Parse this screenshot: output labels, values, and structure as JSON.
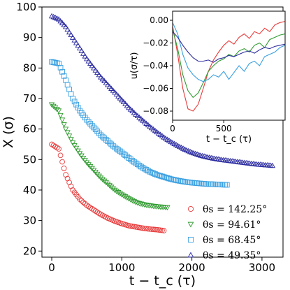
{
  "chart_data": [
    {
      "type": "scatter",
      "title": "",
      "xlabel": "t − t_c (τ)",
      "ylabel": "X (σ)",
      "xlim": [
        -140,
        3300
      ],
      "ylim": [
        18,
        100
      ],
      "xticks": [
        0,
        1000,
        2000,
        3000
      ],
      "yticks": [
        20,
        30,
        40,
        50,
        60,
        70,
        80,
        90,
        100
      ],
      "grid": false,
      "legend_position": "bottom-right",
      "legend": [
        {
          "label": "θs = 142.25°",
          "series": 0
        },
        {
          "label": "θs = 94.61°",
          "series": 1
        },
        {
          "label": "θs = 68.45°",
          "series": 2
        },
        {
          "label": "θs = 49.35°",
          "series": 3
        }
      ],
      "series": [
        {
          "name": "θs = 142.25°",
          "marker": "circle",
          "color": "#e83b3b",
          "x": [
            0,
            100,
            200,
            300,
            400,
            500,
            600,
            700,
            800,
            900,
            1000,
            1100,
            1200,
            1300,
            1400,
            1500,
            1600
          ],
          "y": [
            55.0,
            53.5,
            45.0,
            40.0,
            37.0,
            35.0,
            33.5,
            32.0,
            30.8,
            29.8,
            29.0,
            28.3,
            27.9,
            27.5,
            27.2,
            27.0,
            26.7
          ]
        },
        {
          "name": "θs = 94.61°",
          "marker": "triangle-down",
          "color": "#2f9b2f",
          "x": [
            0,
            100,
            200,
            300,
            400,
            500,
            600,
            700,
            800,
            900,
            1000,
            1100,
            1200,
            1300,
            1400,
            1500,
            1600,
            1650
          ],
          "y": [
            68.0,
            66.0,
            60.0,
            55.5,
            52.0,
            49.0,
            46.5,
            44.0,
            42.0,
            40.0,
            38.5,
            37.2,
            36.0,
            35.3,
            34.9,
            34.6,
            34.4,
            34.3
          ]
        },
        {
          "name": "θs = 68.45°",
          "marker": "square",
          "color": "#3aa0e0",
          "x": [
            0,
            100,
            200,
            300,
            400,
            500,
            600,
            700,
            800,
            900,
            1000,
            1100,
            1200,
            1300,
            1400,
            1500,
            1600,
            1700,
            1800,
            1900,
            2000,
            2100,
            2200,
            2300,
            2400,
            2500
          ],
          "y": [
            82.0,
            81.5,
            76.0,
            70.0,
            66.0,
            63.0,
            60.5,
            58.0,
            56.0,
            54.0,
            52.3,
            50.5,
            48.8,
            47.3,
            46.0,
            45.0,
            44.3,
            43.6,
            43.1,
            42.7,
            42.4,
            42.2,
            42.0,
            41.9,
            41.8,
            41.7
          ]
        },
        {
          "name": "θs = 49.35°",
          "marker": "triangle-up",
          "color": "#2b2ba0",
          "x": [
            0,
            100,
            200,
            300,
            400,
            500,
            600,
            700,
            800,
            900,
            1000,
            1100,
            1200,
            1300,
            1400,
            1500,
            1600,
            1700,
            1800,
            1900,
            2000,
            2100,
            2200,
            2300,
            2400,
            2500,
            2600,
            2700,
            2800,
            2900,
            3000,
            3100,
            3150
          ],
          "y": [
            97.0,
            96.0,
            93.5,
            90.0,
            86.5,
            83.0,
            80.0,
            77.0,
            74.5,
            72.0,
            69.5,
            67.0,
            64.8,
            62.8,
            60.8,
            59.0,
            57.3,
            55.8,
            54.5,
            53.3,
            52.3,
            51.5,
            50.9,
            50.4,
            50.0,
            49.7,
            49.4,
            49.1,
            48.8,
            48.5,
            48.3,
            48.1,
            48.0
          ]
        }
      ]
    },
    {
      "type": "line",
      "title": "",
      "xlabel": "t − t_c (τ)",
      "ylabel": "u(σ/τ)",
      "xlim": [
        0,
        1100
      ],
      "ylim": [
        -0.088,
        0.008
      ],
      "xticks": [
        0,
        500
      ],
      "yticks": [
        0.0,
        -0.02,
        -0.04,
        -0.06,
        -0.08
      ],
      "ytick_labels": [
        "0.00",
        "−0.02",
        "−0.04",
        "−0.06",
        "−0.08"
      ],
      "grid": false,
      "series": [
        {
          "color": "#e83b3b",
          "x": [
            0,
            50,
            100,
            150,
            200,
            250,
            300,
            350,
            400,
            450,
            500,
            550,
            600,
            650,
            700,
            750,
            800,
            850,
            900,
            950,
            1000,
            1050,
            1100
          ],
          "y": [
            -0.005,
            -0.03,
            -0.06,
            -0.078,
            -0.08,
            -0.074,
            -0.06,
            -0.045,
            -0.035,
            -0.028,
            -0.022,
            -0.018,
            -0.021,
            -0.015,
            -0.012,
            -0.016,
            -0.01,
            -0.012,
            -0.007,
            -0.01,
            -0.004,
            -0.002,
            -0.001
          ]
        },
        {
          "color": "#2f9b2f",
          "x": [
            0,
            50,
            100,
            150,
            200,
            250,
            300,
            350,
            400,
            450,
            500,
            550,
            600,
            650,
            700,
            750,
            800,
            850,
            900,
            950,
            1000,
            1050,
            1100
          ],
          "y": [
            -0.008,
            -0.025,
            -0.048,
            -0.062,
            -0.068,
            -0.064,
            -0.055,
            -0.045,
            -0.04,
            -0.036,
            -0.034,
            -0.03,
            -0.032,
            -0.027,
            -0.025,
            -0.028,
            -0.022,
            -0.02,
            -0.024,
            -0.017,
            -0.015,
            -0.013,
            -0.012
          ]
        },
        {
          "color": "#3aa0e0",
          "x": [
            0,
            50,
            100,
            150,
            200,
            250,
            300,
            350,
            400,
            450,
            500,
            550,
            600,
            650,
            700,
            750,
            800,
            850,
            900,
            950,
            1000,
            1050,
            1100
          ],
          "y": [
            -0.002,
            -0.012,
            -0.03,
            -0.042,
            -0.048,
            -0.052,
            -0.054,
            -0.052,
            -0.048,
            -0.05,
            -0.045,
            -0.052,
            -0.046,
            -0.04,
            -0.045,
            -0.038,
            -0.036,
            -0.04,
            -0.032,
            -0.03,
            -0.028,
            -0.024,
            -0.022
          ]
        },
        {
          "color": "#2b2ba0",
          "x": [
            0,
            50,
            100,
            150,
            200,
            250,
            300,
            350,
            400,
            450,
            500,
            550,
            600,
            650,
            700,
            750,
            800,
            850,
            900,
            950,
            1000,
            1050,
            1100
          ],
          "y": [
            -0.01,
            -0.015,
            -0.022,
            -0.028,
            -0.033,
            -0.036,
            -0.036,
            -0.035,
            -0.037,
            -0.034,
            -0.033,
            -0.031,
            -0.032,
            -0.03,
            -0.028,
            -0.027,
            -0.029,
            -0.026,
            -0.024,
            -0.025,
            -0.023,
            -0.022,
            -0.021
          ]
        }
      ]
    }
  ]
}
